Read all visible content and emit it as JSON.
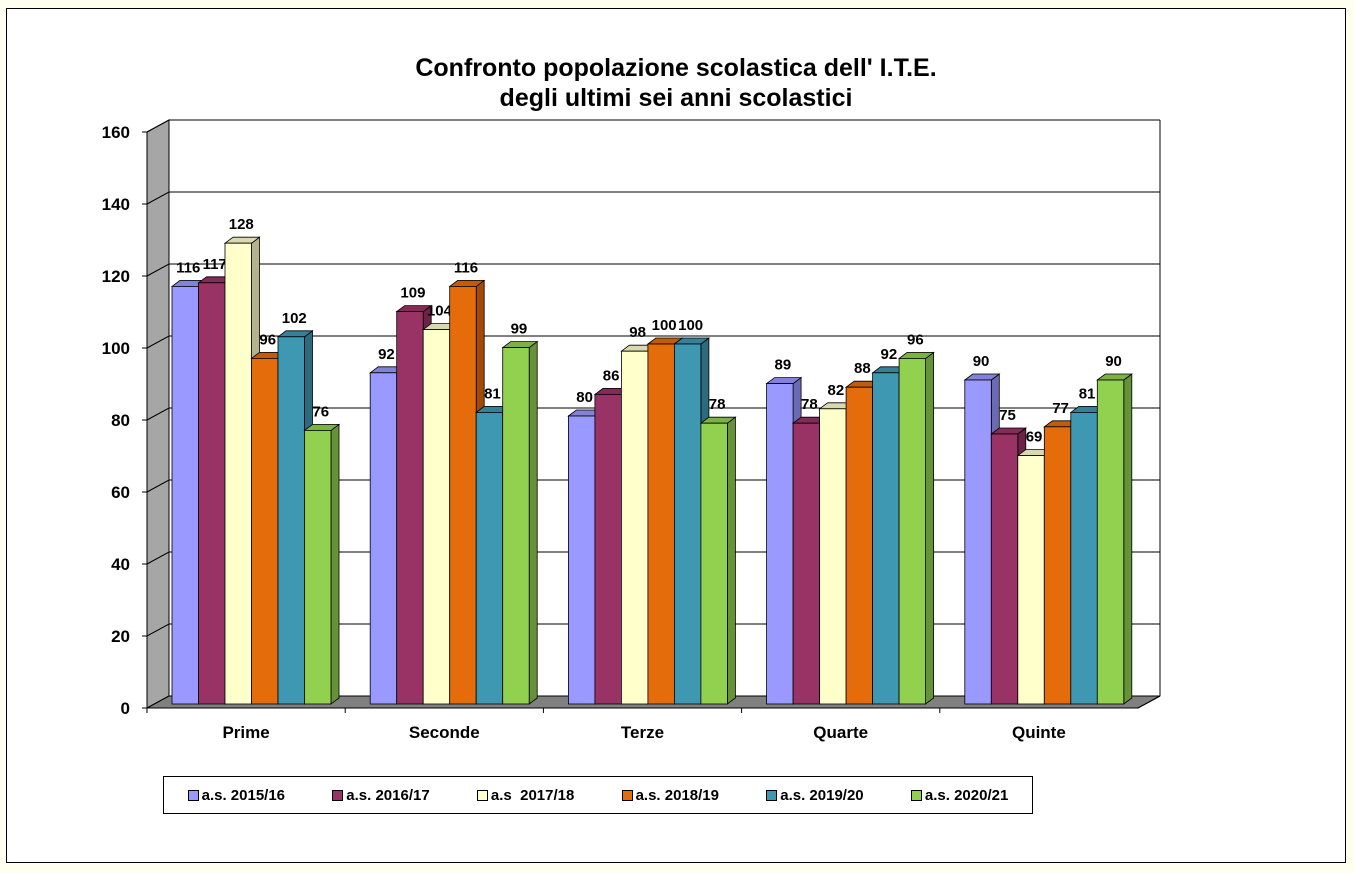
{
  "chart_data": {
    "type": "bar",
    "title": "Confronto popolazione scolastica dell' I.T.E.",
    "subtitle": "degli ultimi sei anni scolastici",
    "categories": [
      "Prime",
      "Seconde",
      "Terze",
      "Quarte",
      "Quinte"
    ],
    "series": [
      {
        "name": "a.s. 2015/16",
        "color": "#9999ff",
        "values": [
          116,
          92,
          80,
          89,
          90
        ]
      },
      {
        "name": "a.s. 2016/17",
        "color": "#993366",
        "values": [
          117,
          109,
          86,
          78,
          75
        ]
      },
      {
        "name": "a.s  2017/18",
        "color": "#ffffcc",
        "values": [
          128,
          104,
          98,
          82,
          69
        ]
      },
      {
        "name": "a.s. 2018/19",
        "color": "#e46c0a",
        "values": [
          96,
          116,
          100,
          88,
          77
        ]
      },
      {
        "name": "a.s. 2019/20",
        "color": "#3f98b2",
        "values": [
          102,
          81,
          100,
          92,
          81
        ]
      },
      {
        "name": "a.s. 2020/21",
        "color": "#92d050",
        "values": [
          76,
          99,
          78,
          96,
          90
        ]
      }
    ],
    "ylim": [
      0,
      160
    ],
    "yticks": [
      0,
      20,
      40,
      60,
      80,
      100,
      120,
      140,
      160
    ],
    "grid": true,
    "legend": "bottom",
    "xlabel": "",
    "ylabel": ""
  }
}
